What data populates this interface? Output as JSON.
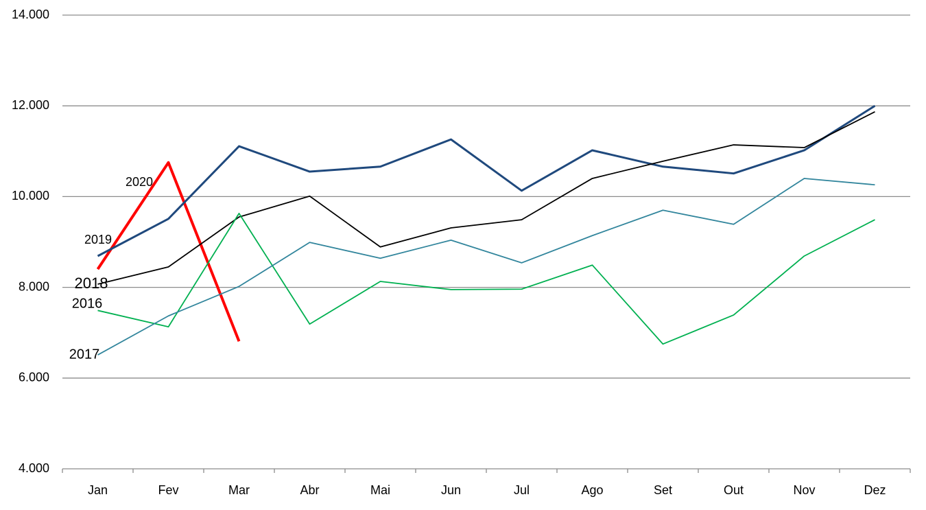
{
  "chart_data": {
    "type": "line",
    "categories": [
      "Jan",
      "Fev",
      "Mar",
      "Abr",
      "Mai",
      "Jun",
      "Jul",
      "Ago",
      "Set",
      "Out",
      "Nov",
      "Dez"
    ],
    "series": [
      {
        "name": "2020",
        "color": "#ff0000",
        "values": [
          8400,
          10750,
          6810,
          null,
          null,
          null,
          null,
          null,
          null,
          null,
          null,
          null
        ]
      },
      {
        "name": "2019",
        "color": "#1f497d",
        "values": [
          8690,
          9510,
          11110,
          10550,
          10660,
          11260,
          10130,
          11020,
          10660,
          10510,
          11020,
          12000
        ]
      },
      {
        "name": "2018",
        "color": "#000000",
        "values": [
          8070,
          8450,
          9550,
          10010,
          8890,
          9310,
          9490,
          10400,
          10780,
          11140,
          11080,
          11870
        ]
      },
      {
        "name": "2016",
        "color": "#00b050",
        "values": [
          7490,
          7130,
          9630,
          7190,
          8130,
          7950,
          7960,
          8490,
          6750,
          7390,
          8690,
          9490
        ]
      },
      {
        "name": "2017",
        "color": "#31859c",
        "values": [
          6510,
          7370,
          8020,
          8990,
          8640,
          9040,
          8540,
          9140,
          9700,
          9390,
          10400,
          10260
        ]
      }
    ],
    "ylim": [
      4000,
      14000
    ],
    "yticks": [
      {
        "value": 4000,
        "label": "4.000"
      },
      {
        "value": 6000,
        "label": "6.000"
      },
      {
        "value": 8000,
        "label": "8.000"
      },
      {
        "value": 10000,
        "label": "10.000"
      },
      {
        "value": 12000,
        "label": "12.000"
      },
      {
        "value": 14000,
        "label": "14.000"
      }
    ],
    "grid": true
  }
}
